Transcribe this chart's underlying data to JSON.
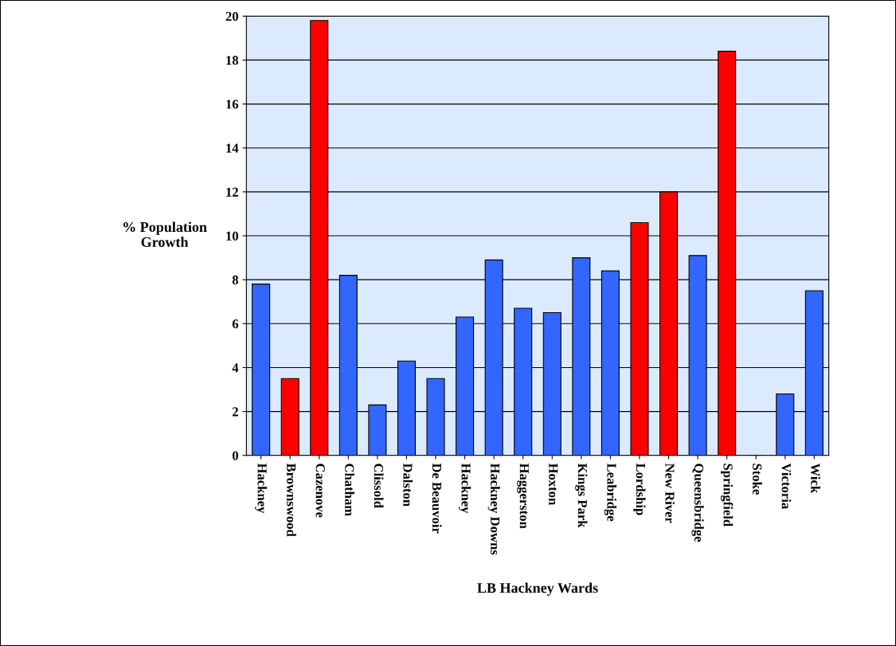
{
  "chart_data": {
    "type": "bar",
    "xlabel": "LB Hackney Wards",
    "ylabel": "% Population\nGrowth",
    "categories": [
      "Hackney",
      "Brownswood",
      "Cazenove",
      "Chatham",
      "Clissold",
      "Dalston",
      "De Beauvoir",
      "Hackney",
      "Hackney Downs",
      "Haggerston",
      "Hoxton",
      "Kings Park",
      "Leabridge",
      "Lordship",
      "New River",
      "Queensbridge",
      "Springfield",
      "Stoke",
      "Victoria",
      "Wick"
    ],
    "values": [
      7.8,
      3.5,
      19.8,
      8.2,
      2.3,
      4.3,
      3.5,
      6.3,
      8.9,
      6.7,
      6.5,
      9.0,
      8.4,
      10.6,
      12.0,
      9.1,
      18.4,
      0.0,
      2.8,
      7.5
    ],
    "colors": [
      "#3366ff",
      "#ff0000",
      "#ff0000",
      "#3366ff",
      "#3366ff",
      "#3366ff",
      "#3366ff",
      "#3366ff",
      "#3366ff",
      "#3366ff",
      "#3366ff",
      "#3366ff",
      "#3366ff",
      "#ff0000",
      "#ff0000",
      "#3366ff",
      "#ff0000",
      "#000000",
      "#3366ff",
      "#3366ff"
    ],
    "ylim": [
      0,
      20
    ],
    "yticks": [
      0,
      2,
      4,
      6,
      8,
      10,
      12,
      14,
      16,
      18,
      20
    ],
    "grid": "y"
  }
}
